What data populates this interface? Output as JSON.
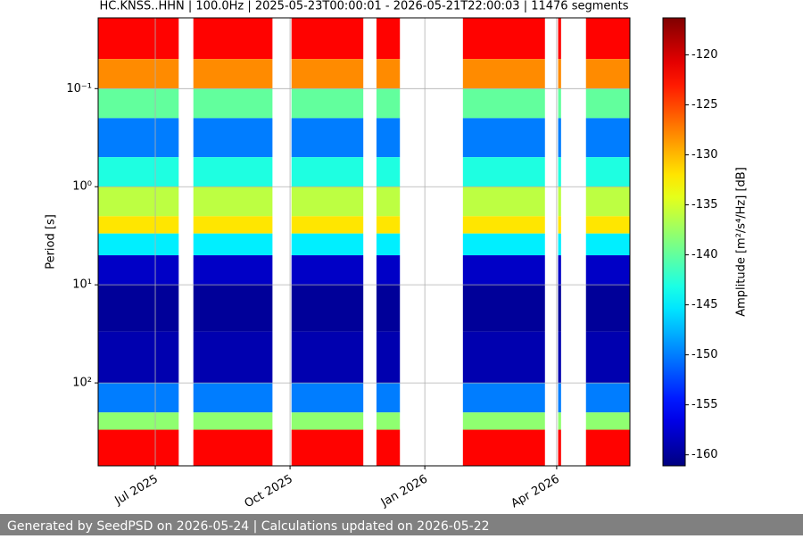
{
  "chart_data": {
    "type": "spectrogram",
    "title": "HC.KNSS..HHN | 100.0Hz | 2025-05-23T00:00:01 - 2026-05-21T22:00:03 | 11476 segments",
    "y_label": "Period [s]",
    "colorbar_label": "Amplitude [m²/s⁴/Hz] [dB]",
    "footer": "Generated by SeedPSD on 2026-05-24 | Calculations updated on 2026-05-22",
    "xlim": [
      "2025-05-23",
      "2026-05-21"
    ],
    "xticks": [
      {
        "value": "2025-07-01",
        "label": "Jul 2025"
      },
      {
        "value": "2025-10-01",
        "label": "Oct 2025"
      },
      {
        "value": "2026-01-01",
        "label": "Jan 2026"
      },
      {
        "value": "2026-04-01",
        "label": "Apr 2026"
      }
    ],
    "ylim": [
      0.019,
      700
    ],
    "y_inverted": true,
    "y_log": true,
    "yticks": [
      {
        "value": 0.1,
        "label": "10⁻¹"
      },
      {
        "value": 1,
        "label": "10⁰"
      },
      {
        "value": 10,
        "label": "10¹"
      },
      {
        "value": 100,
        "label": "10²"
      }
    ],
    "grid": true,
    "colormap": "jet",
    "clim": [
      -161.1,
      -116.3
    ],
    "cticks": [
      -160,
      -155,
      -150,
      -145,
      -140,
      -135,
      -130,
      -125,
      -120
    ],
    "segments": [
      [
        "2025-05-23",
        "2025-07-17"
      ],
      [
        "2025-07-27",
        "2025-09-19"
      ],
      [
        "2025-10-02",
        "2025-11-20"
      ],
      [
        "2025-11-29",
        "2025-12-15"
      ],
      [
        "2026-01-27",
        "2026-03-24"
      ],
      [
        "2026-04-02",
        "2026-04-04"
      ],
      [
        "2026-04-21",
        "2026-05-21"
      ]
    ],
    "period_bins": [
      0.019,
      0.05,
      0.1,
      0.2,
      0.5,
      1,
      2,
      3,
      5,
      10,
      30,
      100,
      200,
      300,
      700
    ],
    "values": [
      -122,
      -128,
      -140,
      -150,
      -143,
      -136,
      -132,
      -145,
      -158,
      -160,
      -159,
      -150,
      -138,
      -122
    ]
  }
}
